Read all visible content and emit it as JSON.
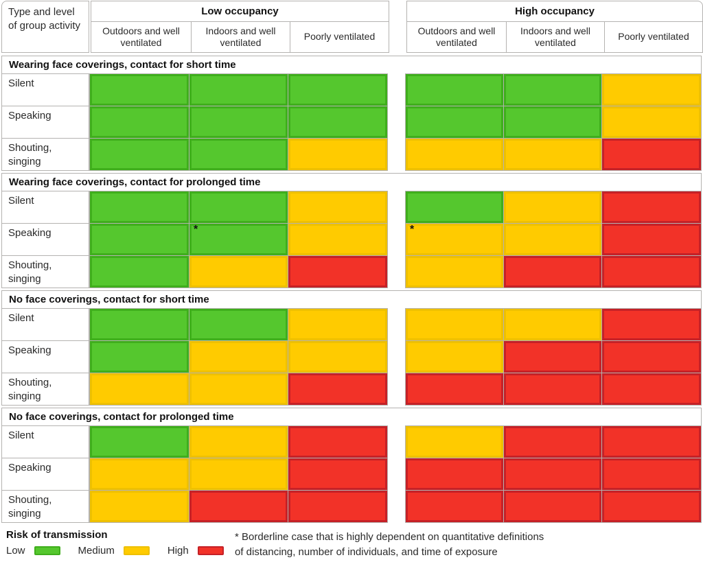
{
  "header": {
    "corner": "Type and level of group activity",
    "groups": [
      {
        "label": "Low occupancy",
        "columns": [
          "Outdoors and well ventilated",
          "Indoors and well ventilated",
          "Poorly ventilated"
        ]
      },
      {
        "label": "High occupancy",
        "columns": [
          "Outdoors and well ventilated",
          "Indoors and well ventilated",
          "Poorly ventilated"
        ]
      }
    ]
  },
  "chart_data": {
    "type": "heatmap",
    "row_group_label": "Type and level of group activity",
    "column_groups": [
      "Low occupancy",
      "High occupancy"
    ],
    "columns": [
      "Low occupancy — Outdoors and well ventilated",
      "Low occupancy — Indoors and well ventilated",
      "Low occupancy — Poorly ventilated",
      "High occupancy — Outdoors and well ventilated",
      "High occupancy — Indoors and well ventilated",
      "High occupancy — Poorly ventilated"
    ],
    "risk_levels": [
      "low",
      "medium",
      "high"
    ],
    "sections": [
      {
        "title": "Wearing face coverings, contact for short time",
        "rows": [
          {
            "label": "Silent",
            "cells": [
              {
                "risk": "low"
              },
              {
                "risk": "low"
              },
              {
                "risk": "low"
              },
              {
                "risk": "low"
              },
              {
                "risk": "low"
              },
              {
                "risk": "medium"
              }
            ]
          },
          {
            "label": "Speaking",
            "cells": [
              {
                "risk": "low"
              },
              {
                "risk": "low"
              },
              {
                "risk": "low"
              },
              {
                "risk": "low"
              },
              {
                "risk": "low"
              },
              {
                "risk": "medium"
              }
            ]
          },
          {
            "label": "Shouting, singing",
            "cells": [
              {
                "risk": "low"
              },
              {
                "risk": "low"
              },
              {
                "risk": "medium"
              },
              {
                "risk": "medium"
              },
              {
                "risk": "medium"
              },
              {
                "risk": "high"
              }
            ]
          }
        ]
      },
      {
        "title": "Wearing face coverings, contact for prolonged time",
        "rows": [
          {
            "label": "Silent",
            "cells": [
              {
                "risk": "low"
              },
              {
                "risk": "low"
              },
              {
                "risk": "medium"
              },
              {
                "risk": "low"
              },
              {
                "risk": "medium"
              },
              {
                "risk": "high"
              }
            ]
          },
          {
            "label": "Speaking",
            "cells": [
              {
                "risk": "low"
              },
              {
                "risk": "low",
                "marker": "*"
              },
              {
                "risk": "medium"
              },
              {
                "risk": "medium",
                "marker": "*"
              },
              {
                "risk": "medium"
              },
              {
                "risk": "high"
              }
            ]
          },
          {
            "label": "Shouting, singing",
            "cells": [
              {
                "risk": "low"
              },
              {
                "risk": "medium"
              },
              {
                "risk": "high"
              },
              {
                "risk": "medium"
              },
              {
                "risk": "high"
              },
              {
                "risk": "high"
              }
            ]
          }
        ]
      },
      {
        "title": "No face coverings, contact for short time",
        "rows": [
          {
            "label": "Silent",
            "cells": [
              {
                "risk": "low"
              },
              {
                "risk": "low"
              },
              {
                "risk": "medium"
              },
              {
                "risk": "medium"
              },
              {
                "risk": "medium"
              },
              {
                "risk": "high"
              }
            ]
          },
          {
            "label": "Speaking",
            "cells": [
              {
                "risk": "low"
              },
              {
                "risk": "medium"
              },
              {
                "risk": "medium"
              },
              {
                "risk": "medium"
              },
              {
                "risk": "high"
              },
              {
                "risk": "high"
              }
            ]
          },
          {
            "label": "Shouting, singing",
            "cells": [
              {
                "risk": "medium"
              },
              {
                "risk": "medium"
              },
              {
                "risk": "high"
              },
              {
                "risk": "high"
              },
              {
                "risk": "high"
              },
              {
                "risk": "high"
              }
            ]
          }
        ]
      },
      {
        "title": "No face coverings, contact for prolonged time",
        "rows": [
          {
            "label": "Silent",
            "cells": [
              {
                "risk": "low"
              },
              {
                "risk": "medium"
              },
              {
                "risk": "high"
              },
              {
                "risk": "medium"
              },
              {
                "risk": "high"
              },
              {
                "risk": "high"
              }
            ]
          },
          {
            "label": "Speaking",
            "cells": [
              {
                "risk": "medium"
              },
              {
                "risk": "medium"
              },
              {
                "risk": "high"
              },
              {
                "risk": "high"
              },
              {
                "risk": "high"
              },
              {
                "risk": "high"
              }
            ]
          },
          {
            "label": "Shouting, singing",
            "cells": [
              {
                "risk": "medium"
              },
              {
                "risk": "high"
              },
              {
                "risk": "high"
              },
              {
                "risk": "high"
              },
              {
                "risk": "high"
              },
              {
                "risk": "high"
              }
            ]
          }
        ]
      }
    ]
  },
  "legend": {
    "title": "Risk of transmission",
    "items": [
      {
        "label": "Low",
        "level": "low"
      },
      {
        "label": "Medium",
        "level": "medium"
      },
      {
        "label": "High",
        "level": "high"
      }
    ]
  },
  "footnote": "* Borderline case that is highly dependent on quantitative definitions\nof distancing, number of individuals, and time of exposure",
  "colors": {
    "low": "#55c72e",
    "low_border": "#3fae1c",
    "medium": "#ffcb00",
    "medium_border": "#eec000",
    "high": "#f23228",
    "high_border": "#c52127",
    "grid_border": "#b4b2b0"
  }
}
